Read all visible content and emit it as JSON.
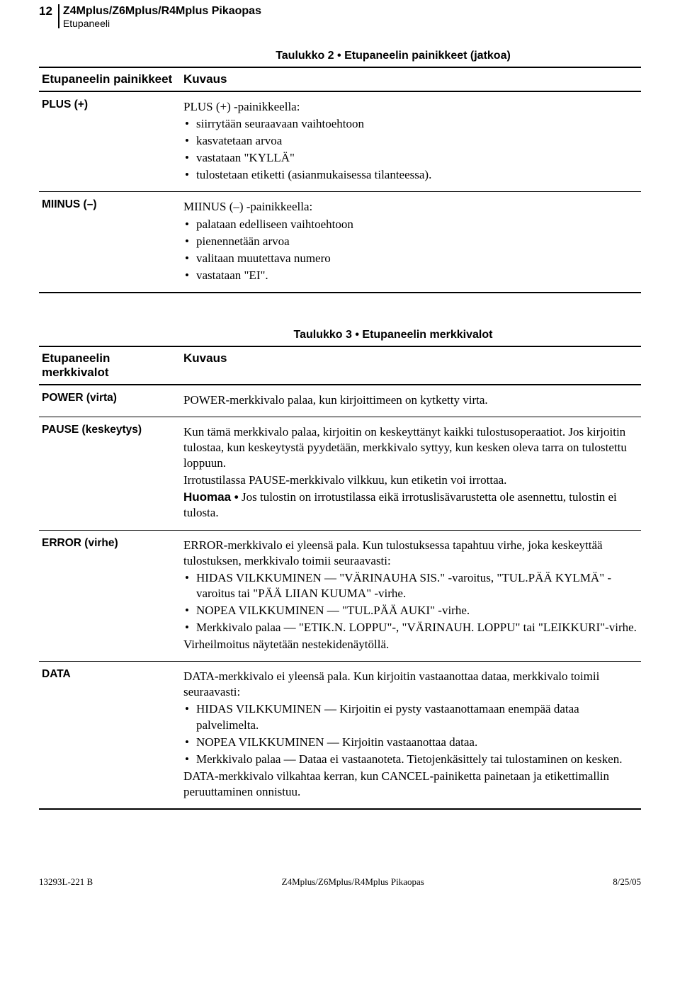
{
  "header": {
    "page_number": "12",
    "title": "Z4Mplus/Z6Mplus/R4Mplus Pikaopas",
    "subtitle": "Etupaneeli"
  },
  "table2": {
    "title": "Taulukko 2 • Etupaneelin painikkeet (jatkoa)",
    "col1_header": "Etupaneelin painikkeet",
    "col2_header": "Kuvaus",
    "rows": {
      "plus": {
        "label": "PLUS (+)",
        "lead": "PLUS (+) -painikkeella:",
        "b0": "siirrytään seuraavaan vaihtoehtoon",
        "b1": "kasvatetaan arvoa",
        "b2": "vastataan \"KYLLÄ\"",
        "b3": "tulostetaan etiketti (asianmukaisessa tilanteessa)."
      },
      "minus": {
        "label": "MIINUS (–)",
        "lead": "MIINUS (–) -painikkeella:",
        "b0": "palataan edelliseen vaihtoehtoon",
        "b1": "pienennetään arvoa",
        "b2": "valitaan muutettava numero",
        "b3": "vastataan \"EI\"."
      }
    }
  },
  "table3": {
    "title": "Taulukko 3 • Etupaneelin merkkivalot",
    "col1_header": "Etupaneelin merkkivalot",
    "col2_header": "Kuvaus",
    "rows": {
      "power": {
        "label": "POWER (virta)",
        "p0": "POWER-merkkivalo palaa, kun kirjoittimeen on kytketty virta."
      },
      "pause": {
        "label": "PAUSE (keskeytys)",
        "p0": "Kun tämä merkkivalo palaa, kirjoitin on keskeyttänyt kaikki tulostusoperaatiot. Jos kirjoitin tulostaa, kun keskeytystä pyydetään, merkkivalo syttyy, kun kesken oleva tarra on tulostettu loppuun.",
        "p1": "Irrotustilassa PAUSE-merkkivalo vilkkuu, kun etiketin voi irrottaa.",
        "p2_bold": "Huomaa •",
        "p2_rest": " Jos tulostin on irrotustilassa eikä irrotuslisävarustetta ole asennettu, tulostin ei tulosta."
      },
      "error": {
        "label": "ERROR (virhe)",
        "p0": "ERROR-merkkivalo ei yleensä pala. Kun tulostuksessa tapahtuu virhe, joka keskeyttää tulostuksen, merkkivalo toimii seuraavasti:",
        "b0": "HIDAS VILKKUMINEN — \"VÄRINAUHA SIS.\" -varoitus, \"TUL.PÄÄ KYLMÄ\" -varoitus tai \"PÄÄ LIIAN KUUMA\" -virhe.",
        "b1": "NOPEA VILKKUMINEN — \"TUL.PÄÄ AUKI\" -virhe.",
        "b2": "Merkkivalo palaa — \"ETIK.N. LOPPU\"-, \"VÄRINAUH. LOPPU\" tai \"LEIKKURI\"-virhe.",
        "p1": "Virheilmoitus näytetään nestekidenäytöllä."
      },
      "data": {
        "label": "DATA",
        "p0": "DATA-merkkivalo ei yleensä pala. Kun kirjoitin vastaanottaa dataa, merkkivalo toimii seuraavasti:",
        "b0": "HIDAS VILKKUMINEN — Kirjoitin ei pysty vastaanottamaan enempää dataa palvelimelta.",
        "b1": "NOPEA VILKKUMINEN — Kirjoitin vastaanottaa dataa.",
        "b2": "Merkkivalo palaa — Dataa ei vastaanoteta. Tietojenkäsittely tai tulostaminen on kesken.",
        "p1": "DATA-merkkivalo vilkahtaa kerran, kun CANCEL-painiketta painetaan ja etikettimallin peruuttaminen onnistuu."
      }
    }
  },
  "footer": {
    "left": "13293L-221 B",
    "center": "Z4Mplus/Z6Mplus/R4Mplus Pikaopas",
    "right": "8/25/05"
  }
}
